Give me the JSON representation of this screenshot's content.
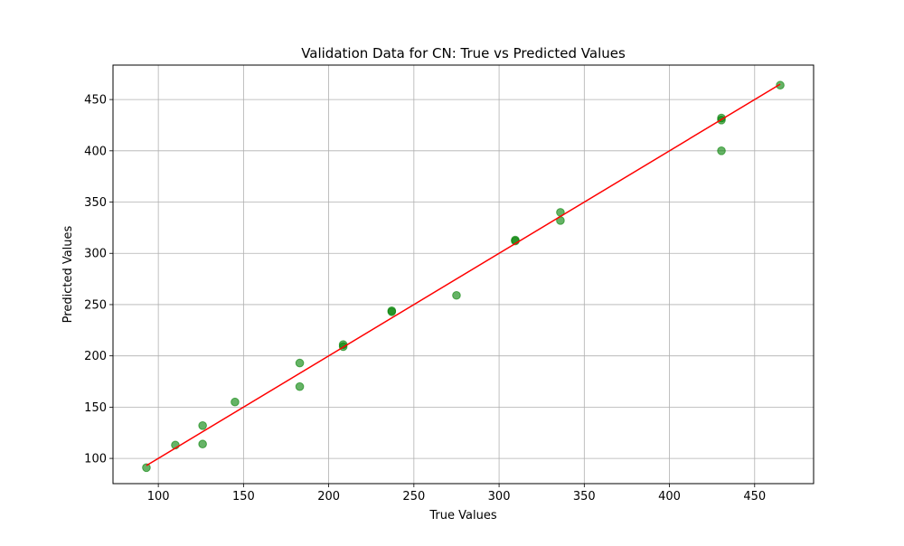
{
  "chart_data": {
    "type": "scatter",
    "title": "Validation Data for CN: True vs Predicted Values",
    "xlabel": "True Values",
    "ylabel": "Predicted Values",
    "xlim": [
      73.4,
      484.6
    ],
    "ylim": [
      75.4,
      483.6
    ],
    "xticks": [
      100,
      150,
      200,
      250,
      300,
      350,
      400,
      450
    ],
    "yticks": [
      100,
      150,
      200,
      250,
      300,
      350,
      400,
      450
    ],
    "grid": true,
    "series": [
      {
        "kind": "scatter",
        "color": "#008000",
        "opacity": 0.6,
        "points": [
          {
            "x": 93,
            "y": 91
          },
          {
            "x": 110,
            "y": 113
          },
          {
            "x": 126,
            "y": 132
          },
          {
            "x": 126,
            "y": 114
          },
          {
            "x": 145,
            "y": 155
          },
          {
            "x": 183,
            "y": 193
          },
          {
            "x": 183,
            "y": 170
          },
          {
            "x": 208.5,
            "y": 211
          },
          {
            "x": 208.5,
            "y": 209
          },
          {
            "x": 237,
            "y": 244
          },
          {
            "x": 237,
            "y": 243
          },
          {
            "x": 275,
            "y": 259
          },
          {
            "x": 309.5,
            "y": 313
          },
          {
            "x": 309.5,
            "y": 312
          },
          {
            "x": 336,
            "y": 340
          },
          {
            "x": 336,
            "y": 332
          },
          {
            "x": 430.5,
            "y": 432
          },
          {
            "x": 430.5,
            "y": 430
          },
          {
            "x": 430.5,
            "y": 400
          },
          {
            "x": 465,
            "y": 464
          }
        ]
      },
      {
        "kind": "line",
        "color": "#ff0000",
        "points": [
          {
            "x": 93,
            "y": 93
          },
          {
            "x": 465,
            "y": 465
          }
        ]
      }
    ]
  }
}
